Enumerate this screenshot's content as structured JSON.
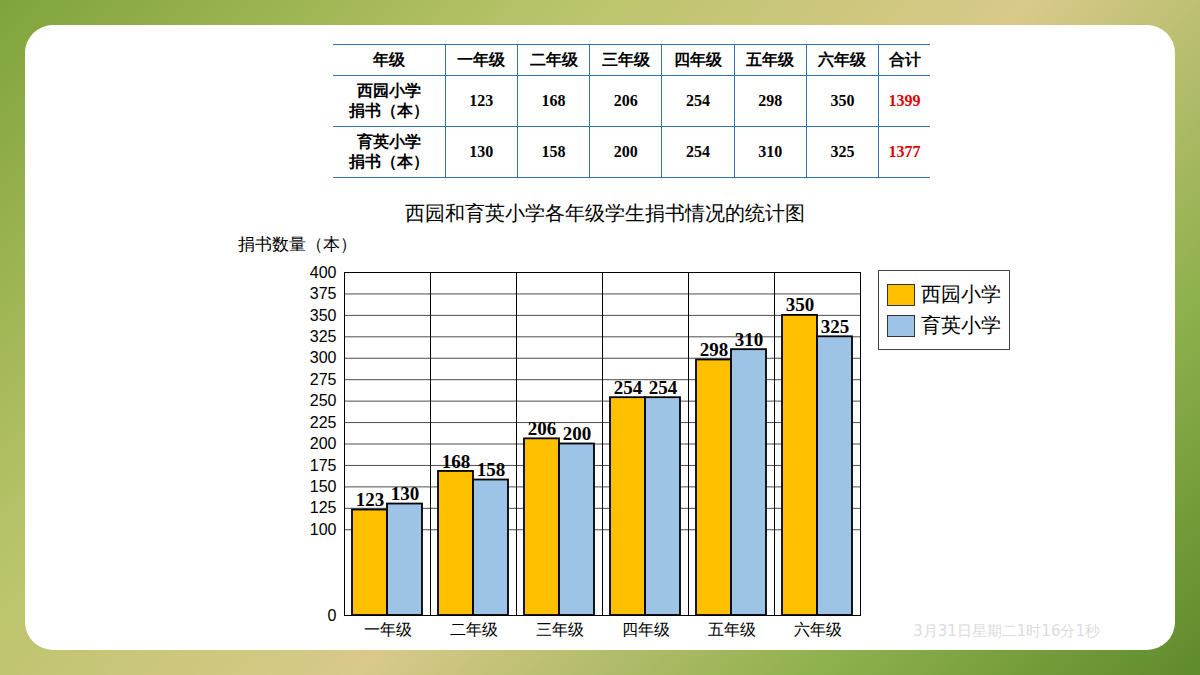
{
  "table": {
    "header": [
      "年级",
      "一年级",
      "二年级",
      "三年级",
      "四年级",
      "五年级",
      "六年级",
      "合计"
    ],
    "rows": [
      [
        "西园小学\n捐书（本）",
        123,
        168,
        206,
        254,
        298,
        350,
        1399
      ],
      [
        "育英小学\n捐书（本）",
        130,
        158,
        200,
        254,
        310,
        325,
        1377
      ]
    ]
  },
  "chart_data": {
    "type": "bar",
    "title": "西园和育英小学各年级学生捐书情况的统计图",
    "y_label": "捐书数量（本）",
    "categories": [
      "一年级",
      "二年级",
      "三年级",
      "四年级",
      "五年级",
      "六年级"
    ],
    "series": [
      {
        "name": "西园小学",
        "color": "#ffc000",
        "values": [
          123,
          168,
          206,
          254,
          298,
          350
        ]
      },
      {
        "name": "育英小学",
        "color": "#9dc3e6",
        "values": [
          130,
          158,
          200,
          254,
          310,
          325
        ]
      }
    ],
    "ylim": [
      0,
      400
    ],
    "yticks": [
      0,
      100,
      125,
      150,
      175,
      200,
      225,
      250,
      275,
      300,
      325,
      350,
      375,
      400
    ],
    "grid": true,
    "data_labels": true,
    "legend": "right"
  },
  "footer": "3月31日星期二1时16分1秒"
}
